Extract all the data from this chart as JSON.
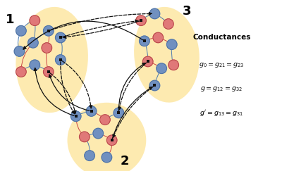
{
  "bg_color": "#ffffff",
  "cluster_color": "#fde8a8",
  "blue_node": "#7090c0",
  "red_node": "#e07878",
  "blue_node_dark": "#4a6fa0",
  "red_node_dark": "#b04040",
  "arrow_blue": "#4a7ab0",
  "arrow_red": "#cc4444",
  "dashed_color": "#111111",
  "solid_color": "#111111",
  "label1": "1",
  "label2": "2",
  "label3": "3",
  "title": "Conductances",
  "eq1": "$g_0 = g_{21} = g_{23}$",
  "eq2": "$g = g_{12} = g_{32}$",
  "eq3": "$g' = g_{13} = g_{31}$"
}
